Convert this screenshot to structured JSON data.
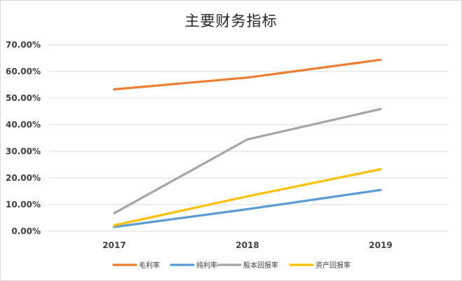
{
  "chart_data": {
    "type": "line",
    "title": "主要财务指标",
    "categories": [
      "2017",
      "2018",
      "2019"
    ],
    "ylim": [
      0,
      0.7
    ],
    "ytick_values": [
      0,
      0.1,
      0.2,
      0.3,
      0.4,
      0.5,
      0.6,
      0.7
    ],
    "ytick_labels": [
      "0.00%",
      "10.00%",
      "20.00%",
      "30.00%",
      "40.00%",
      "50.00%",
      "60.00%",
      "70.00%"
    ],
    "grid": true,
    "legend_position": "bottom",
    "series": [
      {
        "name": "毛利率",
        "color": "#ED7D31",
        "values": [
          0.533,
          0.577,
          0.644
        ]
      },
      {
        "name": "纯利率",
        "color": "#5B9BD5",
        "values": [
          0.016,
          0.083,
          0.155
        ]
      },
      {
        "name": "股本回报率",
        "color": "#A5A5A5",
        "values": [
          0.068,
          0.345,
          0.459
        ]
      },
      {
        "name": "资产回报率",
        "color": "#FFC000",
        "values": [
          0.022,
          0.131,
          0.233
        ]
      }
    ]
  }
}
